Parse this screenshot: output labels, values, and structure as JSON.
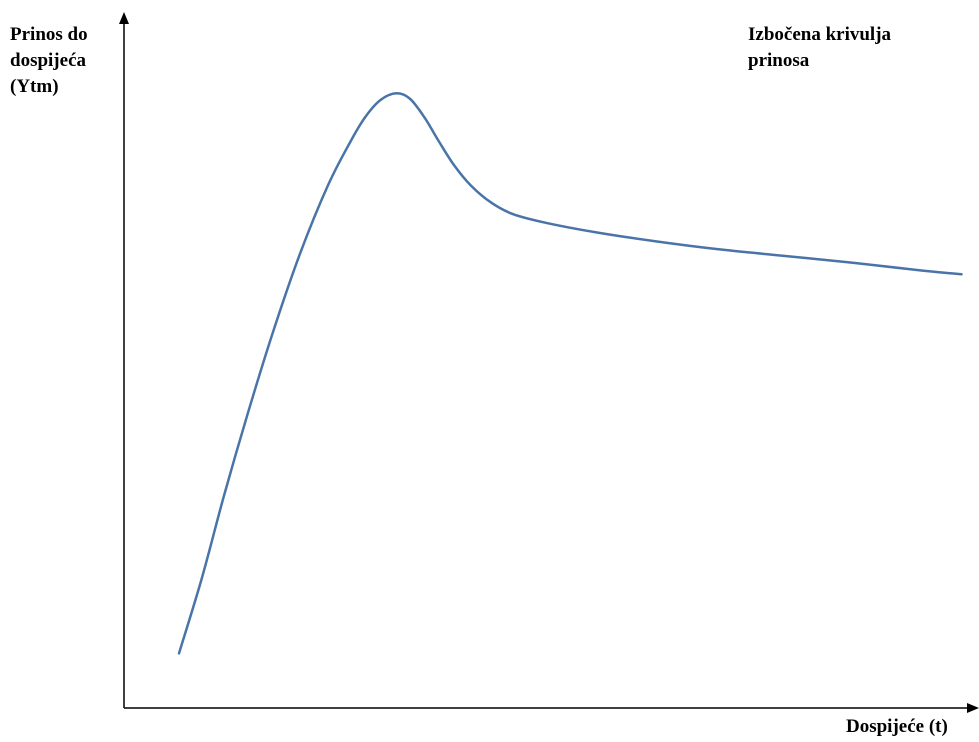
{
  "chart_data": {
    "type": "line",
    "title": "",
    "annotation": "Izbočena krivulja\nprinosa",
    "xlabel": "Dospijeće (t)",
    "ylabel": "Prinos do\ndospijeća\n(Ytm)",
    "xlim": [
      0,
      100
    ],
    "ylim": [
      0,
      100
    ],
    "grid": false,
    "legend": "none",
    "axis_ticks": false,
    "series": [
      {
        "color": "#4a74a8",
        "x": [
          6.5,
          9.2,
          11.8,
          14.6,
          17.6,
          20.8,
          24.1,
          26.8,
          28.5,
          30.3,
          32.2,
          33.8,
          35.5,
          37.2,
          39.0,
          41.0,
          43.4,
          46.0,
          50.0,
          56.0,
          63.0,
          70.0,
          78.0,
          86.0,
          94.0,
          99.0
        ],
        "y": [
          8.0,
          19.0,
          31.0,
          43.0,
          55.0,
          66.5,
          76.5,
          83.0,
          86.5,
          89.0,
          90.0,
          89.2,
          86.5,
          83.0,
          79.5,
          76.5,
          74.0,
          72.3,
          71.0,
          69.6,
          68.3,
          67.2,
          66.2,
          65.2,
          64.1,
          63.5
        ]
      }
    ]
  }
}
